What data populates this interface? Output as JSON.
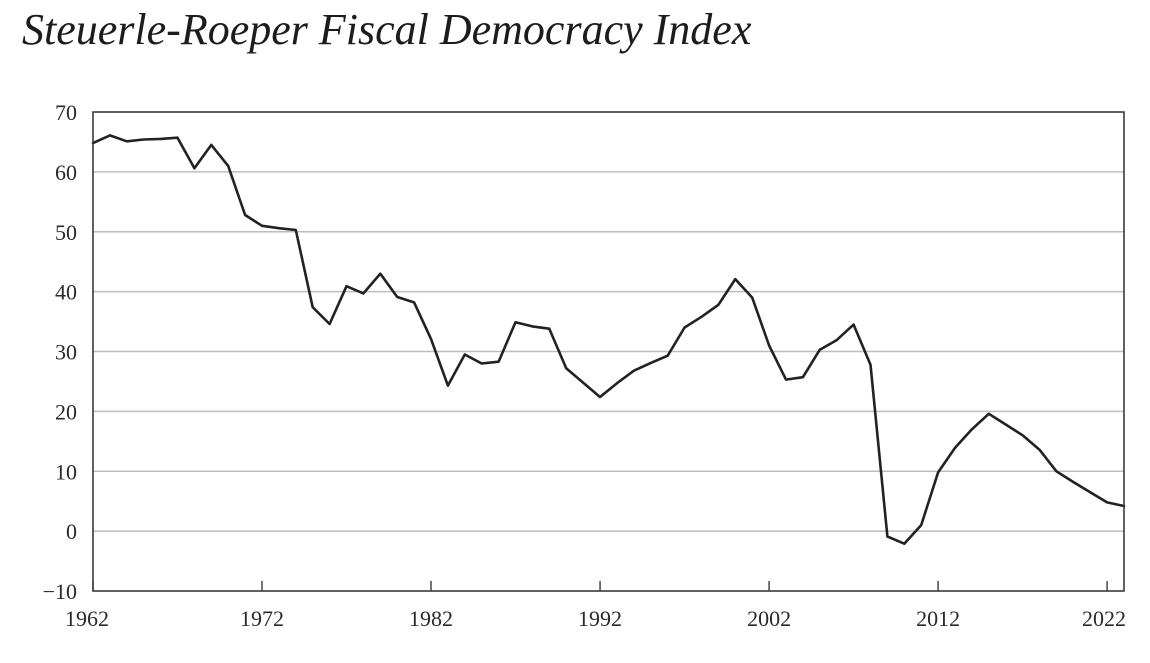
{
  "chart_data": {
    "type": "line",
    "title": "Steuerle-Roeper Fiscal Democracy Index",
    "xlabel": "",
    "ylabel": "",
    "xlim": [
      1962,
      2023
    ],
    "ylim": [
      -10,
      70
    ],
    "x_ticks": [
      1962,
      1972,
      1982,
      1992,
      2002,
      2012,
      2022
    ],
    "y_ticks": [
      -10,
      0,
      10,
      20,
      30,
      40,
      50,
      60,
      70
    ],
    "grid": true,
    "line_color": "#222222",
    "series": [
      {
        "x": [
          1962,
          1963,
          1964,
          1965,
          1966,
          1967,
          1968,
          1969,
          1970,
          1971,
          1972,
          1973,
          1974,
          1975,
          1976,
          1977,
          1978,
          1979,
          1980,
          1981,
          1982,
          1983,
          1984,
          1985,
          1986,
          1987,
          1988,
          1989,
          1990,
          1991,
          1992,
          1993,
          1994,
          1995,
          1996,
          1997,
          1998,
          1999,
          2000,
          2001,
          2002,
          2003,
          2004,
          2005,
          2006,
          2007,
          2008,
          2009,
          2010,
          2011,
          2012,
          2013,
          2014,
          2015,
          2016,
          2017,
          2018,
          2019,
          2020,
          2021,
          2022,
          2023
        ],
        "values": [
          64.8,
          66.1,
          65.1,
          65.4,
          65.5,
          65.7,
          60.6,
          64.5,
          61.0,
          52.8,
          51.0,
          50.6,
          50.3,
          37.4,
          34.6,
          40.9,
          39.7,
          43.0,
          39.1,
          38.2,
          32.1,
          24.3,
          29.5,
          28.0,
          28.3,
          34.9,
          34.2,
          33.8,
          27.2,
          24.8,
          22.4,
          24.7,
          26.8,
          28.1,
          29.3,
          34.0,
          35.8,
          37.8,
          42.1,
          39.0,
          31.0,
          25.3,
          25.7,
          30.3,
          31.9,
          34.5,
          27.8,
          -0.9,
          -2.1,
          1.0,
          9.8,
          13.9,
          17.0,
          19.6,
          17.8,
          16.0,
          13.6,
          10.0,
          8.2,
          6.5,
          4.8,
          4.2
        ]
      }
    ]
  }
}
